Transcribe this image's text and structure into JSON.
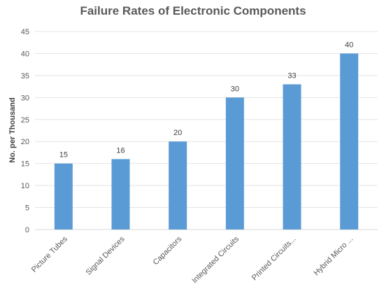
{
  "chart_data": {
    "type": "bar",
    "title": "Failure Rates of Electronic Components",
    "xlabel": "",
    "ylabel": "No. per Thousand",
    "categories": [
      "Picture Tubes",
      "Signal Devices",
      "Capacitors",
      "Integrated Circuits",
      "Printed Circuits...",
      "Hybrid Micro ..."
    ],
    "values": [
      15,
      16,
      20,
      30,
      33,
      40
    ],
    "ylim": [
      0,
      45
    ],
    "yticks": [
      "0",
      "5",
      "10",
      "15",
      "20",
      "25",
      "30",
      "35",
      "40",
      "45"
    ],
    "bar_color": "#5B9BD5",
    "grid": true,
    "legend": "none",
    "data_labels": [
      "15",
      "16",
      "20",
      "30",
      "33",
      "40"
    ]
  }
}
